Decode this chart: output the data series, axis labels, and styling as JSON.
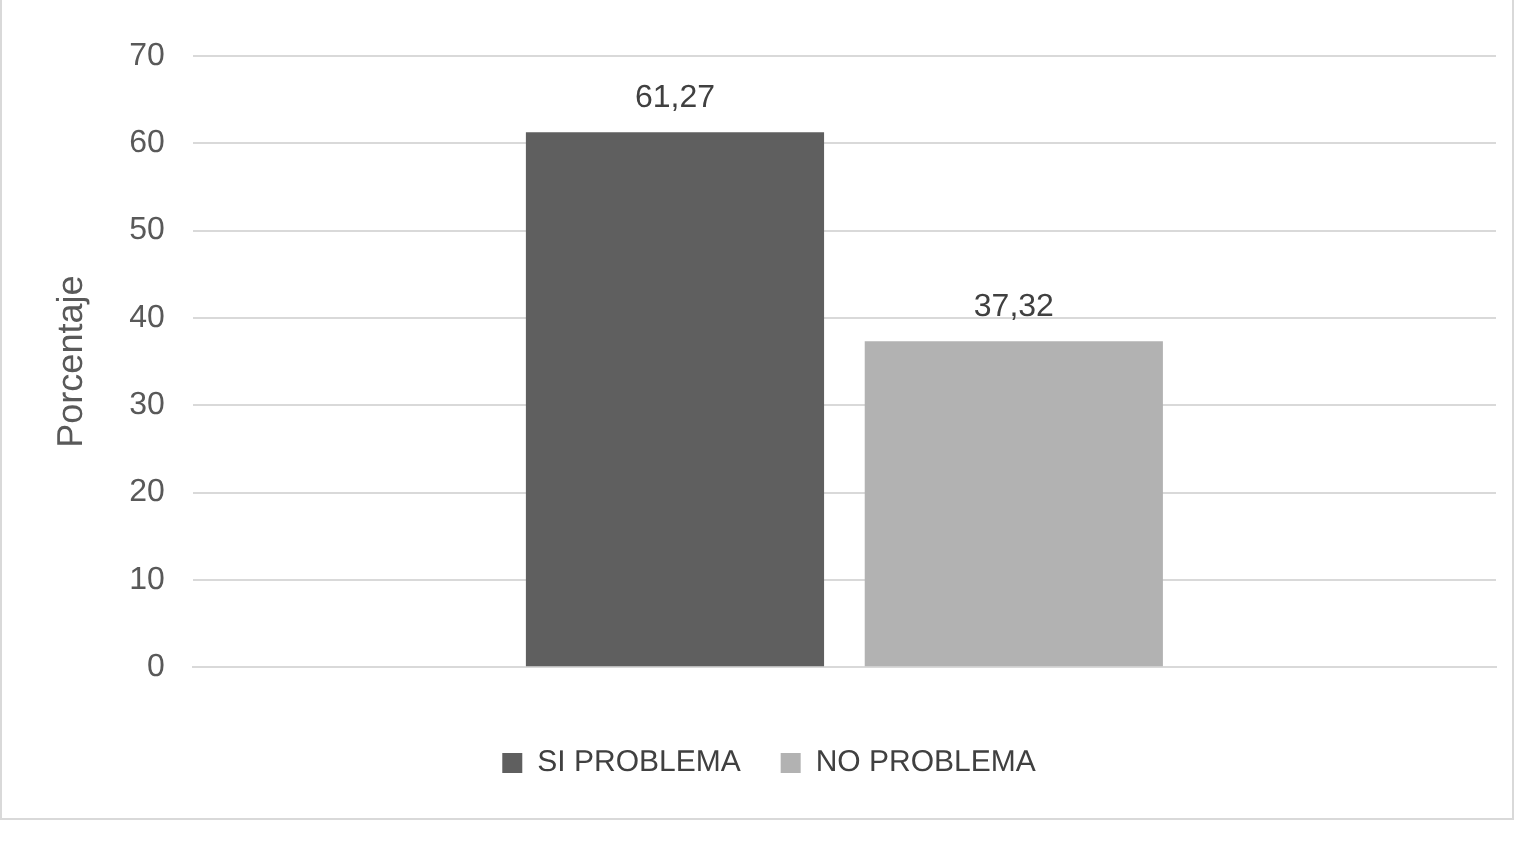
{
  "chart_data": {
    "type": "bar",
    "ylabel": "Porcentaje",
    "categories": [
      null
    ],
    "series": [
      {
        "name": "SI PROBLEMA",
        "color": "#5f5f5f",
        "values": [
          61.27
        ],
        "value_labels": [
          "61,27"
        ]
      },
      {
        "name": "NO PROBLEMA",
        "color": "#b2b2b2",
        "values": [
          37.32
        ],
        "value_labels": [
          "37,32"
        ]
      }
    ],
    "ylim": [
      0,
      70
    ],
    "yticks": [
      0,
      10,
      20,
      30,
      40,
      50,
      60,
      70
    ],
    "grid": "y",
    "legend": "bottom"
  }
}
